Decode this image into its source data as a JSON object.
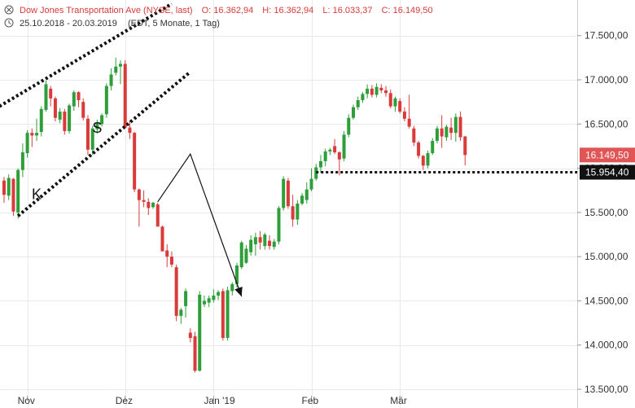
{
  "header": {
    "title": "Dow Jones Transportation Ave (NYSE, last)",
    "ohlc_o": "O: 16.362,94",
    "ohlc_h": "H: 16.362,94",
    "ohlc_l": "L: 16.033,37",
    "ohlc_c": "C: 16.149,50",
    "range": "25.10.2018 - 20.03.2019",
    "info": "(EDT, 5 Monate, 1 Tag)"
  },
  "colors": {
    "up": "#2e9e3a",
    "down": "#d93a3a",
    "grid": "#e9e9e9",
    "last_badge": "#e05555",
    "support_badge": "#111111"
  },
  "chart_data": {
    "type": "candlestick",
    "ylim": [
      13500,
      17700
    ],
    "yticks": [
      13500,
      14000,
      14500,
      15000,
      15500,
      16000,
      16500,
      17000,
      17500
    ],
    "ytick_labels": [
      "13.500,00",
      "14.000,00",
      "14.500,00",
      "15.000,00",
      "15.500,00",
      "16.000,00",
      "16.500,00",
      "17.000,00",
      "17.500,00"
    ],
    "xticks": [
      {
        "index": 5,
        "label": "Nov"
      },
      {
        "index": 26,
        "label": "Dez"
      },
      {
        "index": 45,
        "label": "Jan '19"
      },
      {
        "index": 66,
        "label": "Feb"
      },
      {
        "index": 85,
        "label": "Mär"
      }
    ],
    "candles": [
      [
        15860,
        15900,
        15610,
        15700
      ],
      [
        15690,
        15930,
        15640,
        15890
      ],
      [
        15880,
        15890,
        15460,
        15510
      ],
      [
        15500,
        16000,
        15430,
        15980
      ],
      [
        15980,
        16280,
        15900,
        16180
      ],
      [
        16170,
        16430,
        16120,
        16400
      ],
      [
        16400,
        16450,
        16240,
        16370
      ],
      [
        16370,
        16560,
        16310,
        16400
      ],
      [
        16410,
        16700,
        16360,
        16670
      ],
      [
        16660,
        16990,
        16640,
        16950
      ],
      [
        16900,
        16930,
        16700,
        16790
      ],
      [
        16790,
        16810,
        16530,
        16570
      ],
      [
        16550,
        16680,
        16510,
        16640
      ],
      [
        16640,
        16670,
        16380,
        16420
      ],
      [
        16420,
        16730,
        16390,
        16710
      ],
      [
        16700,
        16880,
        16650,
        16860
      ],
      [
        16860,
        16870,
        16690,
        16770
      ],
      [
        16750,
        16790,
        16540,
        16570
      ],
      [
        16560,
        16600,
        16150,
        16210
      ],
      [
        16210,
        16480,
        16150,
        16450
      ],
      [
        16440,
        16550,
        16390,
        16510
      ],
      [
        16500,
        16620,
        16470,
        16600
      ],
      [
        16610,
        16960,
        16570,
        16930
      ],
      [
        16930,
        17130,
        16880,
        17060
      ],
      [
        17080,
        17250,
        17050,
        17150
      ],
      [
        17150,
        17220,
        16950,
        17180
      ],
      [
        17180,
        17220,
        16450,
        16460
      ],
      [
        16460,
        16540,
        16330,
        16400
      ],
      [
        16400,
        16410,
        15730,
        15760
      ],
      [
        15760,
        15770,
        15340,
        15640
      ],
      [
        15640,
        15750,
        15560,
        15620
      ],
      [
        15620,
        15660,
        15470,
        15550
      ],
      [
        15560,
        15620,
        15540,
        15610
      ],
      [
        15590,
        15610,
        15340,
        15340
      ],
      [
        15340,
        15350,
        15060,
        15060
      ],
      [
        15070,
        15140,
        14880,
        15000
      ],
      [
        15000,
        15060,
        14880,
        14910
      ],
      [
        14880,
        14910,
        14270,
        14330
      ],
      [
        14330,
        14420,
        14240,
        14400
      ],
      [
        14440,
        14640,
        14310,
        14610
      ],
      [
        14140,
        14190,
        14030,
        14080
      ],
      [
        14100,
        14150,
        13690,
        13710
      ],
      [
        13710,
        14610,
        13700,
        14570
      ],
      [
        14460,
        14560,
        14430,
        14500
      ],
      [
        14480,
        14560,
        14430,
        14530
      ],
      [
        14510,
        14630,
        14480,
        14560
      ],
      [
        14560,
        14620,
        14510,
        14600
      ],
      [
        14610,
        14640,
        14050,
        14080
      ],
      [
        14080,
        14660,
        14050,
        14620
      ],
      [
        14610,
        14710,
        14560,
        14690
      ],
      [
        14690,
        14930,
        14650,
        14900
      ],
      [
        14880,
        15180,
        14860,
        15160
      ],
      [
        14930,
        15130,
        14920,
        15090
      ],
      [
        15050,
        15240,
        15010,
        15190
      ],
      [
        15140,
        15270,
        15010,
        15220
      ],
      [
        15220,
        15290,
        15080,
        15160
      ],
      [
        15120,
        15270,
        15080,
        15250
      ],
      [
        15180,
        15240,
        15080,
        15120
      ],
      [
        15110,
        15200,
        15080,
        15170
      ],
      [
        15170,
        15570,
        15140,
        15550
      ],
      [
        15550,
        15910,
        15520,
        15880
      ],
      [
        15860,
        15890,
        15540,
        15570
      ],
      [
        15570,
        15700,
        15340,
        15420
      ],
      [
        15420,
        15640,
        15360,
        15600
      ],
      [
        15600,
        15720,
        15580,
        15690
      ],
      [
        15640,
        15840,
        15600,
        15760
      ],
      [
        15760,
        16000,
        15740,
        15880
      ],
      [
        15880,
        16050,
        15860,
        16010
      ],
      [
        16010,
        16150,
        15950,
        16080
      ],
      [
        16080,
        16220,
        16020,
        16190
      ],
      [
        16190,
        16230,
        16150,
        16210
      ],
      [
        16250,
        16330,
        16160,
        16180
      ],
      [
        16180,
        16190,
        15920,
        16100
      ],
      [
        16110,
        16420,
        16080,
        16380
      ],
      [
        16380,
        16610,
        16350,
        16570
      ],
      [
        16570,
        16720,
        16550,
        16690
      ],
      [
        16690,
        16810,
        16660,
        16770
      ],
      [
        16770,
        16860,
        16740,
        16840
      ],
      [
        16840,
        16950,
        16790,
        16900
      ],
      [
        16900,
        16940,
        16800,
        16830
      ],
      [
        16830,
        16960,
        16800,
        16920
      ],
      [
        16910,
        16950,
        16850,
        16880
      ],
      [
        16880,
        16930,
        16810,
        16850
      ],
      [
        16850,
        16890,
        16680,
        16700
      ],
      [
        16700,
        16810,
        16640,
        16790
      ],
      [
        16760,
        16790,
        16620,
        16640
      ],
      [
        16640,
        16690,
        16530,
        16560
      ],
      [
        16560,
        16830,
        16450,
        16470
      ],
      [
        16450,
        16480,
        16250,
        16290
      ],
      [
        16290,
        16310,
        16110,
        16140
      ],
      [
        16140,
        16150,
        15980,
        16030
      ],
      [
        16030,
        16200,
        16000,
        16170
      ],
      [
        16170,
        16340,
        16150,
        16310
      ],
      [
        16310,
        16480,
        16280,
        16450
      ],
      [
        16450,
        16600,
        16230,
        16360
      ],
      [
        16350,
        16490,
        16310,
        16470
      ],
      [
        16460,
        16570,
        16320,
        16400
      ],
      [
        16400,
        16620,
        16300,
        16580
      ],
      [
        16580,
        16640,
        16310,
        16350
      ],
      [
        16360,
        16362.94,
        16033.37,
        16149.5
      ]
    ],
    "last_value": 16149.5,
    "last_label": "16.149,50",
    "support_level": 15954.4,
    "support_label": "15.954,40",
    "annotations": [
      {
        "text": "S",
        "x": 20,
        "y": 16400
      },
      {
        "text": "K",
        "x": 7,
        "y": 15650
      }
    ],
    "channel_lines": [
      {
        "x1": -1,
        "y1": 16700,
        "x2": 36,
        "y2": 17860
      },
      {
        "x1": 3,
        "y1": 15460,
        "x2": 40,
        "y2": 17090
      }
    ],
    "arrow_path": [
      [
        33,
        15620
      ],
      [
        40,
        16160
      ],
      [
        51,
        14550
      ]
    ],
    "support_line_start": 67
  }
}
